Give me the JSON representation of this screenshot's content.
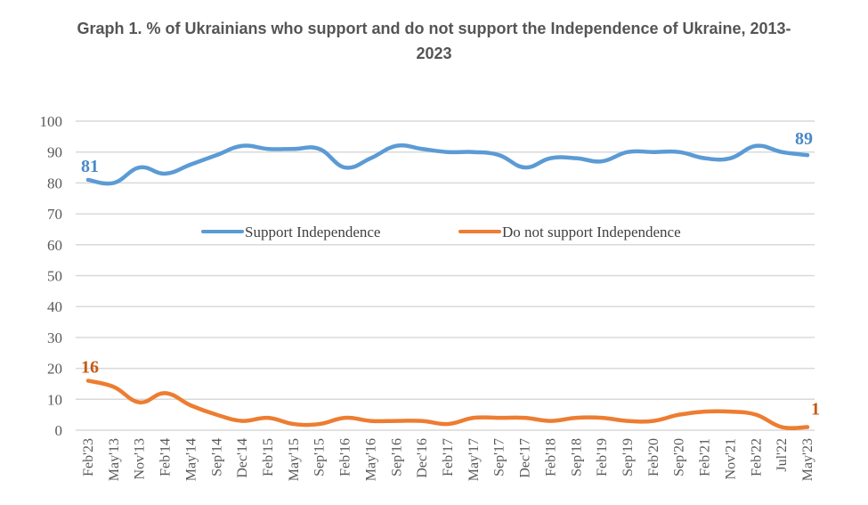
{
  "chart_data": {
    "type": "line",
    "title_line1": "Graph 1. % of Ukrainians who support and do not support the Independence of Ukraine, 2013-",
    "title_line2": "2023",
    "xlabel": "",
    "ylabel": "",
    "ylim": [
      0,
      100
    ],
    "yticks": [
      "0",
      "10",
      "20",
      "30",
      "40",
      "50",
      "60",
      "70",
      "80",
      "90",
      "100"
    ],
    "grid": true,
    "legend_position": "center",
    "categories": [
      "Feb'23",
      "May'13",
      "Nov'13",
      "Feb'14",
      "May'14",
      "Sep'14",
      "Dec'14",
      "Feb'15",
      "May'15",
      "Sep'15",
      "Feb'16",
      "May'16",
      "Sep'16",
      "Dec'16",
      "Feb'17",
      "May'17",
      "Sep'17",
      "Dec'17",
      "Feb'18",
      "Sep'18",
      "Feb'19",
      "Sep'19",
      "Feb'20",
      "Sep'20",
      "Feb'21",
      "Nov'21",
      "Feb'22",
      "Jul'22",
      "May'23"
    ],
    "series": [
      {
        "name": "Support Independence",
        "color": "#5B9BD5",
        "label_color": "#4A89C8",
        "values": [
          81,
          80,
          85,
          83,
          86,
          89,
          92,
          91,
          91,
          91,
          85,
          88,
          92,
          91,
          90,
          90,
          89,
          85,
          88,
          88,
          87,
          90,
          90,
          90,
          88,
          88,
          92,
          90,
          89
        ],
        "first_label": "81",
        "last_label": "89"
      },
      {
        "name": "Do not support Independence",
        "color": "#ED7D31",
        "label_color": "#C55A11",
        "values": [
          16,
          14,
          9,
          12,
          8,
          5,
          3,
          4,
          2,
          2,
          4,
          3,
          3,
          3,
          2,
          4,
          4,
          4,
          3,
          4,
          4,
          3,
          3,
          5,
          6,
          6,
          5,
          1,
          1
        ],
        "first_label": "16",
        "last_label": "1"
      }
    ]
  }
}
